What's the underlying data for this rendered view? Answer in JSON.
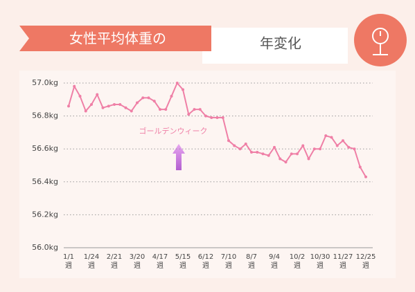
{
  "chart_data": {
    "type": "line",
    "title": "女性平均体重の",
    "subtitle": "年変化",
    "annotation": "ゴールデンウィーク",
    "categories": [
      "1/1\n週",
      null,
      null,
      null,
      "1/24\n週",
      null,
      null,
      null,
      "2/21\n週",
      null,
      null,
      null,
      "3/20\n週",
      null,
      null,
      null,
      "4/17\n週",
      null,
      null,
      null,
      "5/15\n週",
      null,
      null,
      null,
      "6/12\n週",
      null,
      null,
      null,
      "7/10\n週",
      null,
      null,
      null,
      "8/7\n週",
      null,
      null,
      null,
      "9/4\n週",
      null,
      null,
      null,
      "10/2\n週",
      null,
      null,
      null,
      "10/30\n週",
      null,
      null,
      null,
      "11/27\n週",
      null,
      null,
      null,
      "12/25\n週"
    ],
    "values": [
      56.86,
      56.98,
      56.92,
      56.83,
      56.87,
      56.93,
      56.85,
      56.86,
      56.87,
      56.87,
      56.85,
      56.83,
      56.88,
      56.91,
      56.91,
      56.89,
      56.84,
      56.84,
      56.92,
      57.0,
      56.96,
      56.81,
      56.84,
      56.84,
      56.8,
      56.79,
      56.79,
      56.79,
      56.65,
      56.62,
      56.6,
      56.63,
      56.58,
      56.58,
      56.57,
      56.56,
      56.61,
      56.54,
      56.52,
      56.57,
      56.57,
      56.62,
      56.54,
      56.6,
      56.6,
      56.68,
      56.67,
      56.62,
      56.65,
      56.61,
      56.6,
      56.49,
      56.43
    ],
    "color": "#ef7fa6",
    "ylim": [
      56.0,
      57.0
    ],
    "yticks": [
      {
        "value": 56.0,
        "label": "56.0kg"
      },
      {
        "value": 56.2,
        "label": "56.2kg"
      },
      {
        "value": 56.4,
        "label": "56.4kg"
      },
      {
        "value": 56.6,
        "label": "56.6kg"
      },
      {
        "value": 56.8,
        "label": "56.8kg"
      },
      {
        "value": 57.0,
        "label": "57.0kg"
      }
    ],
    "grid": true
  }
}
